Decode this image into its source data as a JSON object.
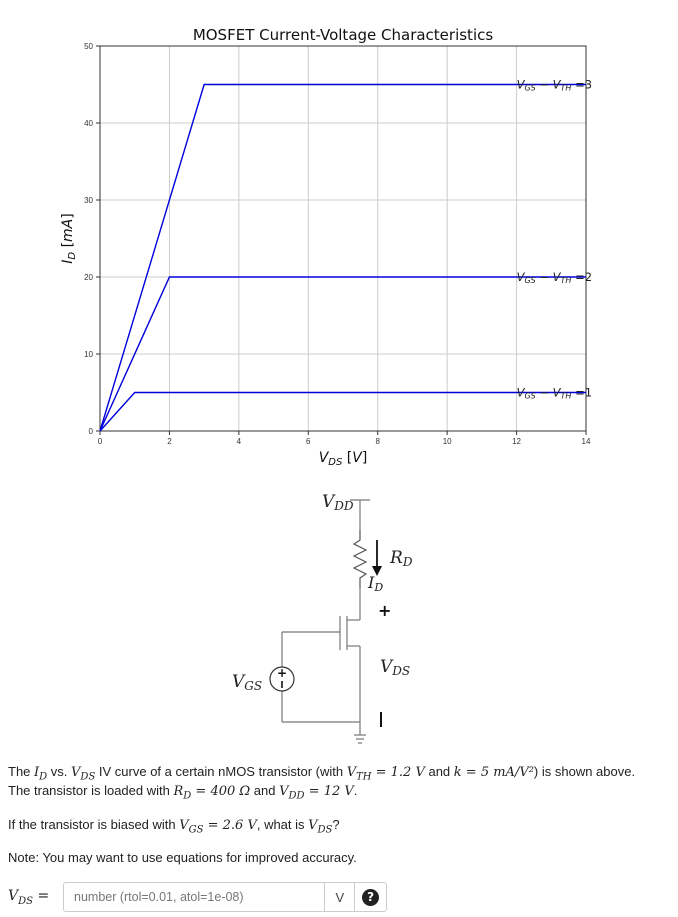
{
  "chart_data": {
    "type": "line",
    "title": "MOSFET Current-Voltage Characteristics",
    "xlabel": "V_DS [V]",
    "ylabel": "I_D [mA]",
    "xlim": [
      0,
      14
    ],
    "ylim": [
      0,
      50
    ],
    "x_ticks": [
      0,
      2,
      4,
      6,
      8,
      10,
      12,
      14
    ],
    "y_ticks": [
      0,
      10,
      20,
      30,
      40,
      50
    ],
    "grid": true,
    "color": "#0000dd",
    "series": [
      {
        "label": "V_GS − V_TH = 1",
        "x": [
          0,
          1,
          14
        ],
        "y": [
          0,
          5,
          5
        ]
      },
      {
        "label": "V_GS − V_TH = 2",
        "x": [
          0,
          2,
          14
        ],
        "y": [
          0,
          20,
          20
        ]
      },
      {
        "label": "V_GS − V_TH = 3",
        "x": [
          0,
          3,
          14
        ],
        "y": [
          0,
          45,
          45
        ]
      }
    ],
    "annotations": [
      {
        "text": "V_GS − V_TH =3",
        "x": 12,
        "y": 45
      },
      {
        "text": "V_GS − V_TH =2",
        "x": 12,
        "y": 20
      },
      {
        "text": "V_GS − V_TH =1",
        "x": 12,
        "y": 5
      }
    ]
  },
  "circuit": {
    "vdd": "V_DD",
    "rd": "R_D",
    "id": "I_D",
    "plus": "+",
    "minus": "−",
    "vds": "V_DS",
    "vgs": "V_GS"
  },
  "question": {
    "line1_pre": "The ",
    "line1_id": "I_D",
    "line1_vs": " vs. ",
    "line1_vds": "V_DS",
    "line1_mid": " IV curve of a certain nMOS transistor (with ",
    "line1_vth": "V_TH = 1.2 V",
    "line1_and": " and ",
    "line1_k": "k = 5 mA/V²",
    "line1_post": ") is shown above.",
    "line2_pre": "The transistor is loaded with ",
    "line2_rd": "R_D = 400 Ω",
    "line2_and": " and ",
    "line2_vdd": "V_DD = 12 V",
    "line2_post": ".",
    "line3_pre": "If the transistor is biased with ",
    "line3_vgs": "V_GS = 2.6 V",
    "line3_mid": ", what is ",
    "line3_vds": "V_DS",
    "line3_post": "?",
    "note": "Note: You may want to use equations for improved accuracy."
  },
  "answer": {
    "label": "V_DS =",
    "placeholder": "number (rtol=0.01, atol=1e-08)",
    "value": "",
    "unit": "V",
    "help": "?"
  }
}
